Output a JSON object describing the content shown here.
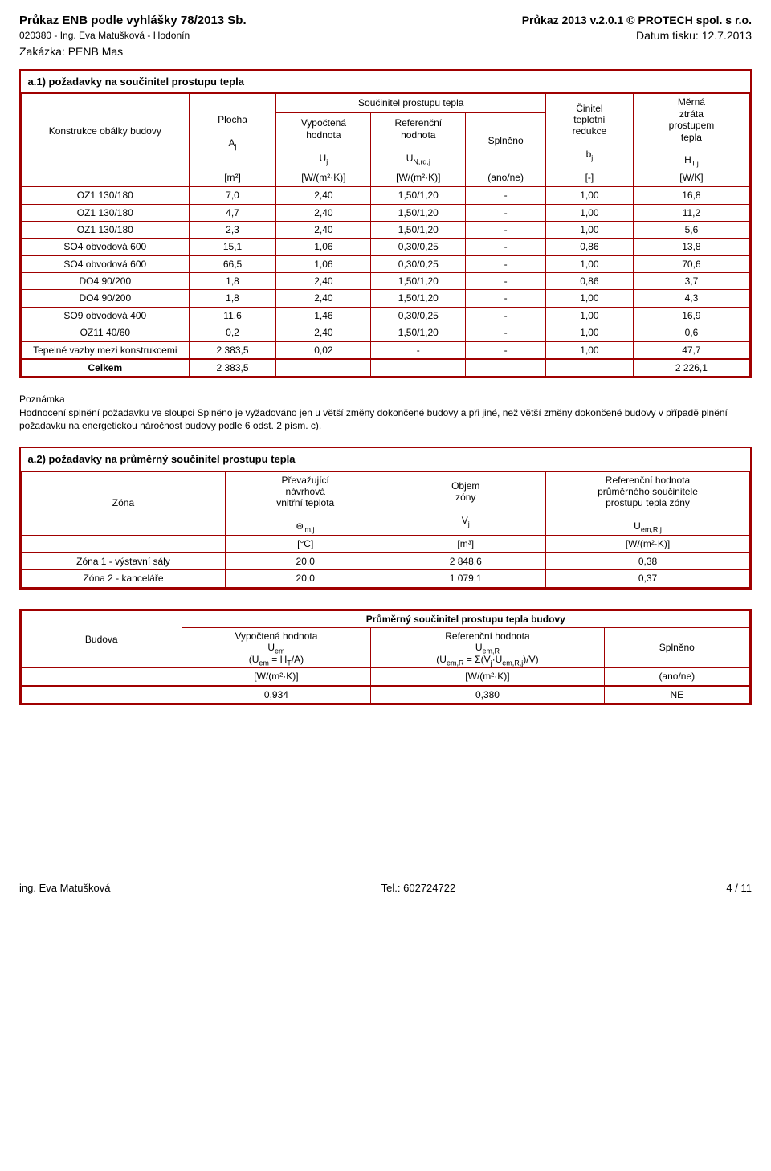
{
  "header": {
    "left_line1": "Průkaz ENB podle vyhlášky 78/2013 Sb.",
    "left_line2": "020380 - Ing. Eva Matušková - Hodonín",
    "left_line3": "Zakázka: PENB Mas",
    "right_line1": "Průkaz 2013 v.2.0.1 © PROTECH spol. s r.o.",
    "right_line2": "Datum tisku: 12.7.2013"
  },
  "tableA1": {
    "title": "a.1) požadavky na součinitel prostupu tepla",
    "col1": "Konstrukce obálky budovy",
    "col2_l1": "Plocha",
    "col2_l2": "A",
    "col2_l2_sub": "j",
    "group_header": "Součinitel prostupu tepla",
    "col3_l1": "Vypočtená",
    "col3_l2": "hodnota",
    "col3_l3": "U",
    "col3_l3_sub": "j",
    "col4_l1": "Referenční",
    "col4_l2": "hodnota",
    "col4_l3": "U",
    "col4_l3_sub": "N,rq,j",
    "col5": "Splněno",
    "col6_l1": "Činitel",
    "col6_l2": "teplotní",
    "col6_l3": "redukce",
    "col6_l4": "b",
    "col6_l4_sub": "j",
    "col7_l1": "Měrná",
    "col7_l2": "ztráta",
    "col7_l3": "prostupem",
    "col7_l4": "tepla",
    "col7_l5": "H",
    "col7_l5_sub": "T,j",
    "units": [
      "[m²]",
      "[W/(m²·K)]",
      "[W/(m²·K)]",
      "(ano/ne)",
      "[-]",
      "[W/K]"
    ],
    "rows": [
      {
        "name": "OZ1 130/180",
        "area": "7,0",
        "u": "2,40",
        "uref": "1,50/1,20",
        "spl": "-",
        "b": "1,00",
        "h": "16,8"
      },
      {
        "name": "OZ1 130/180",
        "area": "4,7",
        "u": "2,40",
        "uref": "1,50/1,20",
        "spl": "-",
        "b": "1,00",
        "h": "11,2"
      },
      {
        "name": "OZ1 130/180",
        "area": "2,3",
        "u": "2,40",
        "uref": "1,50/1,20",
        "spl": "-",
        "b": "1,00",
        "h": "5,6"
      },
      {
        "name": "SO4 obvodová 600",
        "area": "15,1",
        "u": "1,06",
        "uref": "0,30/0,25",
        "spl": "-",
        "b": "0,86",
        "h": "13,8"
      },
      {
        "name": "SO4 obvodová 600",
        "area": "66,5",
        "u": "1,06",
        "uref": "0,30/0,25",
        "spl": "-",
        "b": "1,00",
        "h": "70,6"
      },
      {
        "name": "DO4 90/200",
        "area": "1,8",
        "u": "2,40",
        "uref": "1,50/1,20",
        "spl": "-",
        "b": "0,86",
        "h": "3,7"
      },
      {
        "name": "DO4 90/200",
        "area": "1,8",
        "u": "2,40",
        "uref": "1,50/1,20",
        "spl": "-",
        "b": "1,00",
        "h": "4,3"
      },
      {
        "name": "SO9 obvodová 400",
        "area": "11,6",
        "u": "1,46",
        "uref": "0,30/0,25",
        "spl": "-",
        "b": "1,00",
        "h": "16,9"
      },
      {
        "name": "OZ11 40/60",
        "area": "0,2",
        "u": "2,40",
        "uref": "1,50/1,20",
        "spl": "-",
        "b": "1,00",
        "h": "0,6"
      },
      {
        "name": "Tepelné vazby mezi konstrukcemi",
        "area": "2 383,5",
        "u": "0,02",
        "uref": "-",
        "spl": "-",
        "b": "1,00",
        "h": "47,7"
      }
    ],
    "total_label": "Celkem",
    "total_area": "2 383,5",
    "total_h": "2 226,1"
  },
  "note": {
    "title": "Poznámka",
    "body": "Hodnocení splnění požadavku ve sloupci Splněno je vyžadováno jen u větší změny dokončené budovy a při jiné, než větší změny dokončené budovy v případě plnění požadavku na energetickou náročnost budovy podle 6 odst. 2 písm. c)."
  },
  "tableA2": {
    "title": "a.2) požadavky na průměrný součinitel prostupu tepla",
    "col1": "Zóna",
    "col2_l1": "Převažující",
    "col2_l2": "návrhová",
    "col2_l3": "vnitřní teplota",
    "col2_sym": "Θ",
    "col2_sym_sub": "im,j",
    "col3_l1": "Objem",
    "col3_l2": "zóny",
    "col3_sym": "V",
    "col3_sym_sub": "j",
    "col4_l1": "Referenční hodnota",
    "col4_l2": "průměrného součinitele",
    "col4_l3": "prostupu tepla zóny",
    "col4_sym": "U",
    "col4_sym_sub": "em,R,j",
    "units": [
      "[°C]",
      "[m³]",
      "[W/(m²·K)]"
    ],
    "rows": [
      {
        "zone": "Zóna 1 - výstavní sály",
        "temp": "20,0",
        "vol": "2 848,6",
        "u": "0,38"
      },
      {
        "zone": "Zóna 2 - kanceláře",
        "temp": "20,0",
        "vol": "1 079,1",
        "u": "0,37"
      }
    ]
  },
  "tableA3": {
    "title_row": "Průměrný součinitel prostupu tepla budovy",
    "col1": "Budova",
    "col2_l1": "Vypočtená hodnota",
    "col2_sym": "U",
    "col2_sym_sub": "em",
    "col2_eq": "(U",
    "col2_eq_sub1": "em",
    "col2_eq_mid": " = H",
    "col2_eq_sub2": "T",
    "col2_eq_end": "/A)",
    "col3_l1": "Referenční hodnota",
    "col3_sym": "U",
    "col3_sym_sub": "em,R",
    "col3_eq": "(U",
    "col3_eq_sub1": "em,R",
    "col3_eq_mid": " = Σ(V",
    "col3_eq_sub2": "j",
    "col3_eq_mid2": "·U",
    "col3_eq_sub3": "em,R,j",
    "col3_eq_end": ")/V)",
    "col4": "Splněno",
    "units": [
      "[W/(m²·K)]",
      "[W/(m²·K)]",
      "(ano/ne)"
    ],
    "row": {
      "v1": "0,934",
      "v2": "0,380",
      "v3": "NE"
    }
  },
  "footer": {
    "left": "ing. Eva Matušková",
    "center": "Tel.: 602724722",
    "right": "4 / 11"
  },
  "colors": {
    "border": "#a00000",
    "text": "#000000",
    "bg": "#ffffff"
  }
}
